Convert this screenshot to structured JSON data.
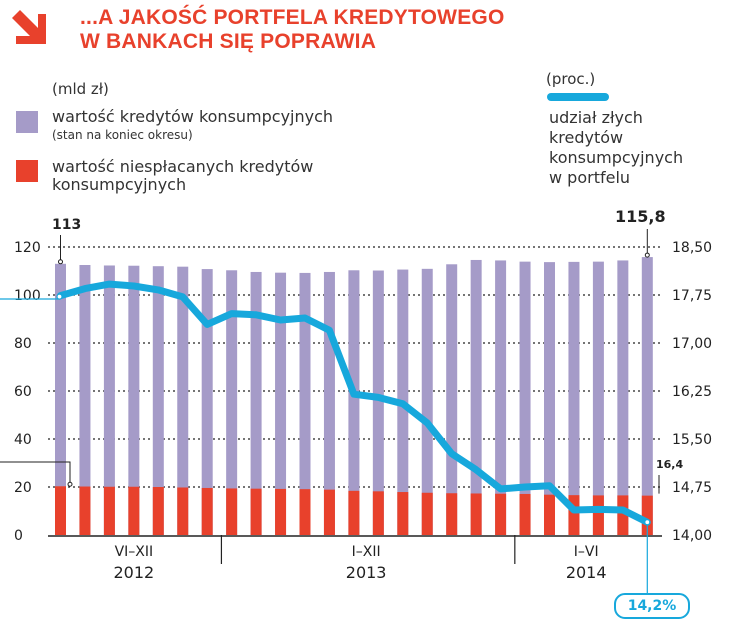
{
  "title": {
    "line1": "...A JAKOŚĆ PORTFELA KREDYTOWEGO",
    "line2": "W BANKACH SIĘ POPRAWIA"
  },
  "legend": {
    "left_unit": "(mld zł)",
    "right_unit": "(proc.)",
    "purple_label": "wartość kredytów konsumpcyjnych",
    "purple_sub": "(stan na koniec okresu)",
    "red_label_1": "wartość niespłacanych kredytów",
    "red_label_2": "konsumpcyjnych",
    "line_label_1": "udział złych",
    "line_label_2": "kredytów",
    "line_label_3": "konsumpcyjnych",
    "line_label_4": "w portfelu"
  },
  "colors": {
    "purple": "#a59bc8",
    "red": "#e8412c",
    "blue": "#17a8dc",
    "title": "#e8412c"
  },
  "annotations": {
    "first_total": "113",
    "last_total": "115,8",
    "last_bad": "16,4",
    "last_share": "14,2%"
  },
  "chart_data": {
    "type": "bar+line",
    "title": "...A JAKOŚĆ PORTFELA KREDYTOWEGO W BANKACH SIĘ POPRAWIA",
    "left_axis": {
      "label": "(mld zł)",
      "min": 0,
      "max": 120,
      "ticks": [
        0,
        20,
        40,
        60,
        80,
        100,
        120
      ]
    },
    "right_axis": {
      "label": "(proc.)",
      "min": 14.0,
      "max": 18.5,
      "ticks": [
        "14,00",
        "14,75",
        "15,50",
        "16,25",
        "17,00",
        "17,75",
        "18,50"
      ]
    },
    "groups": [
      {
        "label": "VI–XII",
        "year": "2012",
        "count": 7
      },
      {
        "label": "I–XII",
        "year": "2013",
        "count": 12
      },
      {
        "label": "I–VI",
        "year": "2014",
        "count": 6
      }
    ],
    "series": [
      {
        "name": "wartość kredytów konsumpcyjnych",
        "type": "bar",
        "color": "#a59bc8",
        "values": [
          113,
          112.5,
          112.3,
          112.2,
          112,
          111.8,
          110.8,
          110.3,
          109.6,
          109.3,
          109.2,
          109.6,
          110.3,
          110.2,
          110.6,
          110.9,
          112.8,
          114.6,
          114.4,
          113.9,
          113.7,
          113.8,
          113.9,
          114.4,
          115.8
        ]
      },
      {
        "name": "wartość niespłacanych kredytów konsumpcyjnych",
        "type": "bar",
        "color": "#e8412c",
        "values": [
          20.3,
          20.2,
          20.1,
          20.1,
          20.0,
          19.8,
          19.6,
          19.4,
          19.3,
          19.2,
          19.1,
          18.9,
          18.4,
          18.2,
          17.9,
          17.6,
          17.4,
          17.3,
          17.2,
          17.1,
          16.8,
          16.6,
          16.5,
          16.5,
          16.4
        ]
      },
      {
        "name": "udział złych kredytów konsumpcyjnych w portfelu",
        "type": "line",
        "axis": "right",
        "color": "#17a8dc",
        "values": [
          17.74,
          17.85,
          17.92,
          17.89,
          17.83,
          17.72,
          17.29,
          17.46,
          17.44,
          17.36,
          17.39,
          17.2,
          16.2,
          16.15,
          16.05,
          15.75,
          15.27,
          15.02,
          14.72,
          14.75,
          14.77,
          14.39,
          14.4,
          14.39,
          14.2
        ]
      }
    ]
  }
}
